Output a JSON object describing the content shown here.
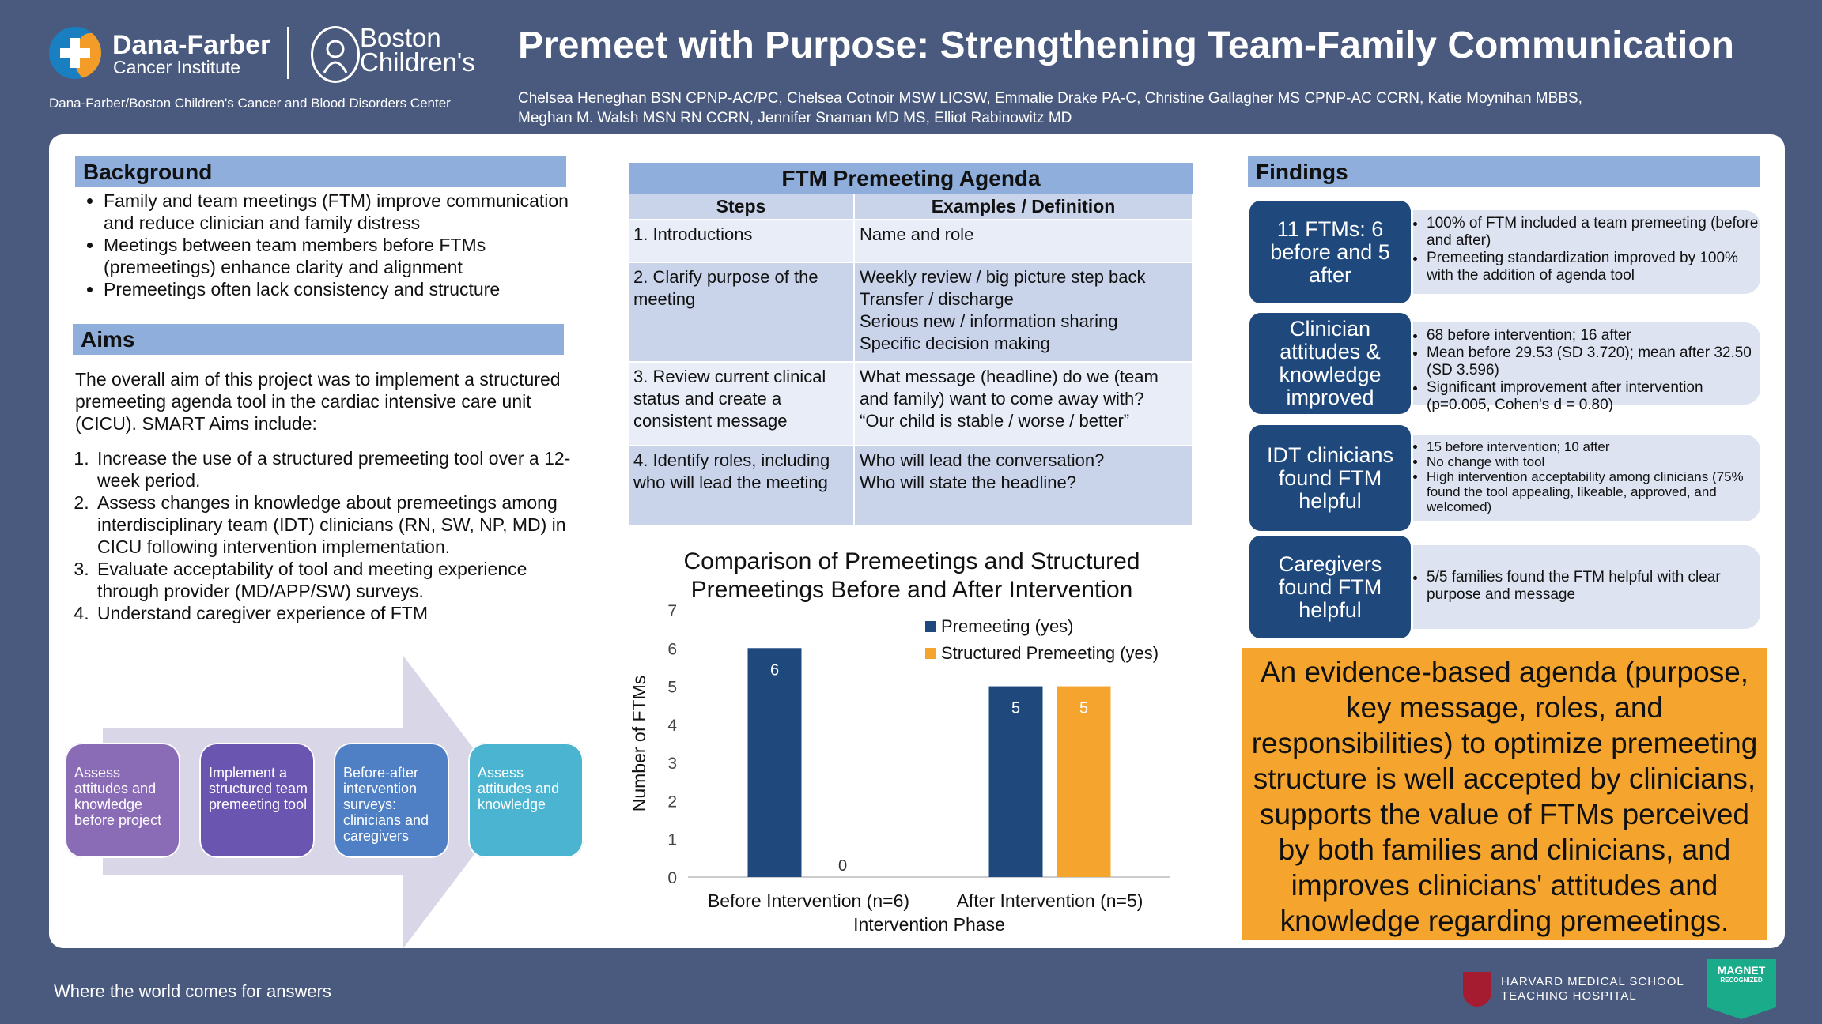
{
  "header": {
    "df_name": "Dana-Farber",
    "df_sub": "Cancer Institute",
    "bc_name_line1": "Boston",
    "bc_name_line2": "Children's",
    "center_line": "Dana-Farber/Boston Children's Cancer and Blood Disorders Center",
    "title": "Premeet with Purpose: Strengthening Team-Family Communication",
    "authors_line1": "Chelsea Heneghan BSN CPNP-AC/PC, Chelsea Cotnoir MSW LICSW, Emmalie Drake PA-C, Christine Gallagher MS CPNP-AC CCRN, Katie Moynihan MBBS,",
    "authors_line2": "Meghan M. Walsh MSN RN CCRN, Jennifer Snaman MD MS, Elliot Rabinowitz MD"
  },
  "background": {
    "heading": "Background",
    "bullets": [
      "Family and team meetings (FTM) improve communication and reduce clinician and family distress",
      "Meetings between team members before FTMs (premeetings) enhance clarity and alignment",
      "Premeetings often lack consistency and structure"
    ]
  },
  "aims": {
    "heading": "Aims",
    "intro": "The overall aim of this project was to implement a structured premeeting agenda tool in the cardiac intensive care unit (CICU). SMART Aims include:",
    "items": [
      "Increase the use of a structured premeeting tool over a 12-week period.",
      "Assess changes in knowledge about premeetings among interdisciplinary team (IDT) clinicians (RN, SW, NP, MD) in CICU following intervention implementation.",
      "Evaluate acceptability of tool and meeting experience through provider (MD/APP/SW) surveys.",
      "Understand caregiver experience of FTM"
    ]
  },
  "process": [
    {
      "label": "Assess attitudes and knowledge before project",
      "color": "#8a6bb5"
    },
    {
      "label": "Implement a structured team premeeting tool",
      "color": "#6a55b0"
    },
    {
      "label": "Before-after intervention surveys: clinicians and caregivers",
      "color": "#4f7fc4"
    },
    {
      "label": "Assess attitudes and knowledge",
      "color": "#4bb4d0"
    }
  ],
  "agenda": {
    "title": "FTM Premeeting Agenda",
    "col1": "Steps",
    "col2": "Examples / Definition",
    "rows": [
      {
        "step": "1. Introductions",
        "def": "Name and role"
      },
      {
        "step": "2. Clarify purpose of the meeting",
        "def": "Weekly review / big picture step back\nTransfer / discharge\nSerious new / information sharing\nSpecific decision making"
      },
      {
        "step": "3. Review current clinical status and create a consistent message",
        "def": "What message (headline) do we (team and family) want to come away with?\n“Our child is stable / worse / better”"
      },
      {
        "step": "4. Identify roles, including who will lead the meeting",
        "def": "Who will lead the conversation?\nWho will state the headline?"
      }
    ]
  },
  "chart_data": {
    "type": "bar",
    "title": "Comparison of Premeetings and Structured Premeetings Before and After Intervention",
    "xlabel": "Intervention Phase",
    "ylabel": "Number of FTMs",
    "categories": [
      "Before Intervention (n=6)",
      "After Intervention (n=5)"
    ],
    "series": [
      {
        "name": "Premeeting (yes)",
        "values": [
          6,
          5
        ],
        "color": "#1f497d"
      },
      {
        "name": "Structured Premeeting (yes)",
        "values": [
          0,
          5
        ],
        "color": "#f5a52e"
      }
    ],
    "ylim": [
      0,
      7
    ],
    "yticks": [
      "0",
      "1",
      "2",
      "3",
      "4",
      "5",
      "6",
      "7"
    ],
    "legend": "top-right",
    "grid": false
  },
  "findings": {
    "heading": "Findings",
    "items": [
      {
        "label": "11 FTMs: 6 before and 5 after",
        "bullets": [
          "100% of FTM included a team premeeting (before and after)",
          "Premeeting standardization improved by 100% with the addition of agenda tool"
        ]
      },
      {
        "label": "Clinician attitudes & knowledge improved",
        "bullets": [
          "68 before intervention; 16 after",
          "Mean before 29.53 (SD 3.720); mean after 32.50 (SD 3.596)",
          "Significant improvement after intervention (p=0.005, Cohen's d = 0.80)"
        ]
      },
      {
        "label": "IDT clinicians found FTM helpful",
        "bullets": [
          "15 before intervention; 10 after",
          "No change with tool",
          "High intervention acceptability among clinicians (75% found the tool appealing, likeable, approved, and welcomed)"
        ]
      },
      {
        "label": "Caregivers found FTM helpful",
        "bullets": [
          "5/5 families found the FTM helpful with clear purpose and message"
        ]
      }
    ]
  },
  "conclusion": "An evidence-based agenda (purpose, key message, roles, and responsibilities) to optimize premeeting structure is well accepted by clinicians, supports the value of FTMs perceived by both families and clinicians, and improves clinicians' attitudes and knowledge regarding premeetings.",
  "footer": {
    "tagline": "Where the world comes for answers",
    "hms_line1": "HARVARD MEDICAL SCHOOL",
    "hms_line2": "TEACHING HOSPITAL",
    "magnet_line1": "MAGNET",
    "magnet_line2": "RECOGNIZED"
  }
}
